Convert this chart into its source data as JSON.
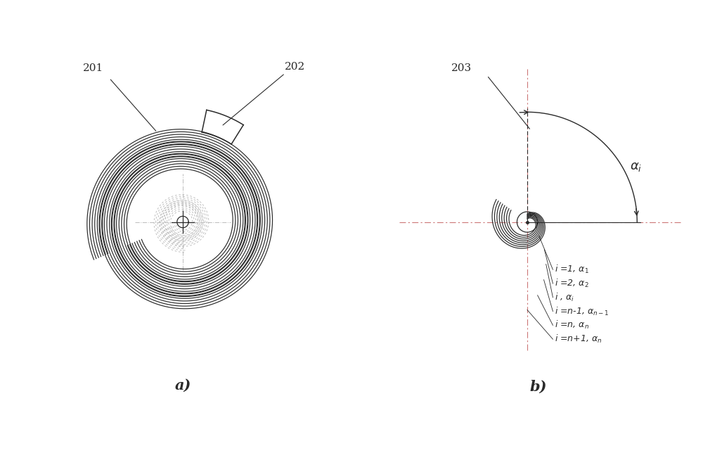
{
  "bg_color": "#ffffff",
  "line_color": "#2a2a2a",
  "dashed_color": "#bbbbbb",
  "dashdot_color": "#cc99aa",
  "label_a": "a)",
  "label_b": "b)",
  "label_201": "201",
  "label_202": "202",
  "label_203": "203",
  "fig_width": 10.0,
  "fig_height": 6.44
}
